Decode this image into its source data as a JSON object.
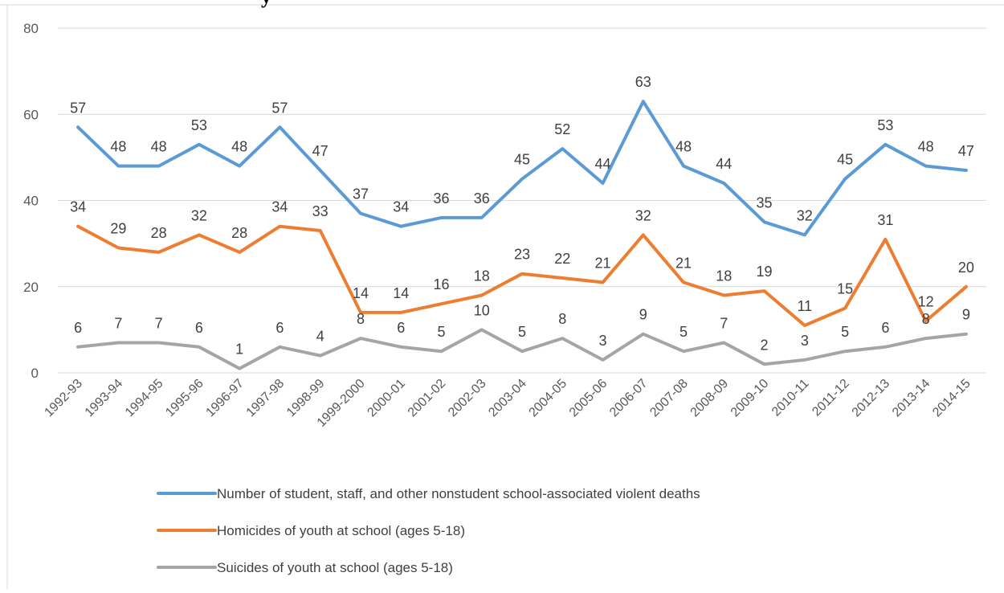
{
  "title_fragment": "y",
  "chart_data": {
    "type": "line",
    "categories": [
      "1992-93",
      "1993-94",
      "1994-95",
      "1995-96",
      "1996-97",
      "1997-98",
      "1998-99",
      "1999-2000",
      "2000-01",
      "2001-02",
      "2002-03",
      "2003-04",
      "2004-05",
      "2005-06",
      "2006-07",
      "2007-08",
      "2008-09",
      "2009-10",
      "2010-11",
      "2011-12",
      "2012-13",
      "2013-14",
      "2014-15"
    ],
    "ylim": [
      0,
      80
    ],
    "yticks": [
      0,
      20,
      40,
      60,
      80
    ],
    "grid": true,
    "legend_position": "bottom",
    "series": [
      {
        "name": "Number of student, staff, and other nonstudent school-associated violent deaths",
        "color": "#5b9bd5",
        "values": [
          57,
          48,
          48,
          53,
          48,
          57,
          47,
          37,
          34,
          36,
          36,
          45,
          52,
          44,
          63,
          48,
          44,
          35,
          32,
          45,
          53,
          48,
          47
        ],
        "labels": [
          "57",
          "48",
          "48",
          "53",
          "48",
          "57",
          "47",
          "37",
          "34",
          "36",
          "36",
          "45",
          "52",
          "44",
          "63",
          "48",
          "44",
          "35",
          "32",
          "45",
          "53",
          "48",
          "47"
        ]
      },
      {
        "name": "Homicides of youth at school (ages 5-18)",
        "color": "#ed7d31",
        "values": [
          34,
          29,
          28,
          32,
          28,
          34,
          33,
          14,
          14,
          16,
          18,
          23,
          22,
          21,
          32,
          21,
          18,
          19,
          11,
          15,
          31,
          12,
          20
        ],
        "labels": [
          "34",
          "29",
          "28",
          "32",
          "28",
          "34",
          "33",
          "14",
          "14",
          "16",
          "18",
          "23",
          "22",
          "21",
          "32",
          "21",
          "18",
          "19",
          "11",
          "15",
          "31",
          "12",
          "20"
        ]
      },
      {
        "name": "Suicides of youth at school (ages 5-18)",
        "color": "#a5a5a5",
        "values": [
          6,
          7,
          7,
          6,
          1,
          6,
          4,
          8,
          6,
          5,
          10,
          5,
          8,
          3,
          9,
          5,
          7,
          2,
          3,
          5,
          6,
          8,
          9
        ],
        "labels": [
          "6",
          "7",
          "7",
          "6",
          "1",
          "6",
          "4",
          "8",
          "6",
          "5",
          "10",
          "5",
          "8",
          "3",
          "9",
          "5",
          "7",
          "2",
          "3",
          "5",
          "6",
          "8",
          "9"
        ]
      }
    ]
  }
}
